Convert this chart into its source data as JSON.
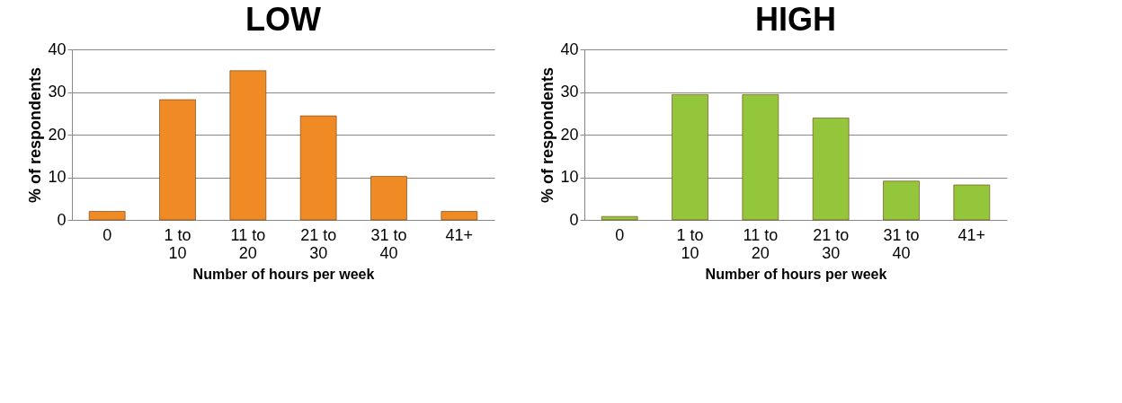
{
  "chart_data": [
    {
      "type": "bar",
      "title": "LOW",
      "xlabel": "Number of hours per week",
      "ylabel": "% of respondents",
      "categories": [
        "0",
        "1 to 10",
        "11 to 20",
        "21 to 30",
        "31 to 40",
        "41+"
      ],
      "values": [
        2,
        28.2,
        35,
        24.4,
        10.2,
        2
      ],
      "color": "#f08a24",
      "ylim": [
        0,
        40
      ],
      "yticks": [
        0,
        10,
        20,
        30,
        40
      ],
      "grid": "y",
      "legend": false
    },
    {
      "type": "bar",
      "title": "HIGH",
      "xlabel": "Number of hours per week",
      "ylabel": "% of respondents",
      "categories": [
        "0",
        "1 to 10",
        "11 to 20",
        "21 to 30",
        "31 to 40",
        "41+"
      ],
      "values": [
        0.8,
        29.4,
        29.4,
        23.9,
        9.1,
        8.2
      ],
      "color": "#94c63c",
      "ylim": [
        0,
        40
      ],
      "yticks": [
        0,
        10,
        20,
        30,
        40
      ],
      "grid": "y",
      "legend": false
    }
  ]
}
